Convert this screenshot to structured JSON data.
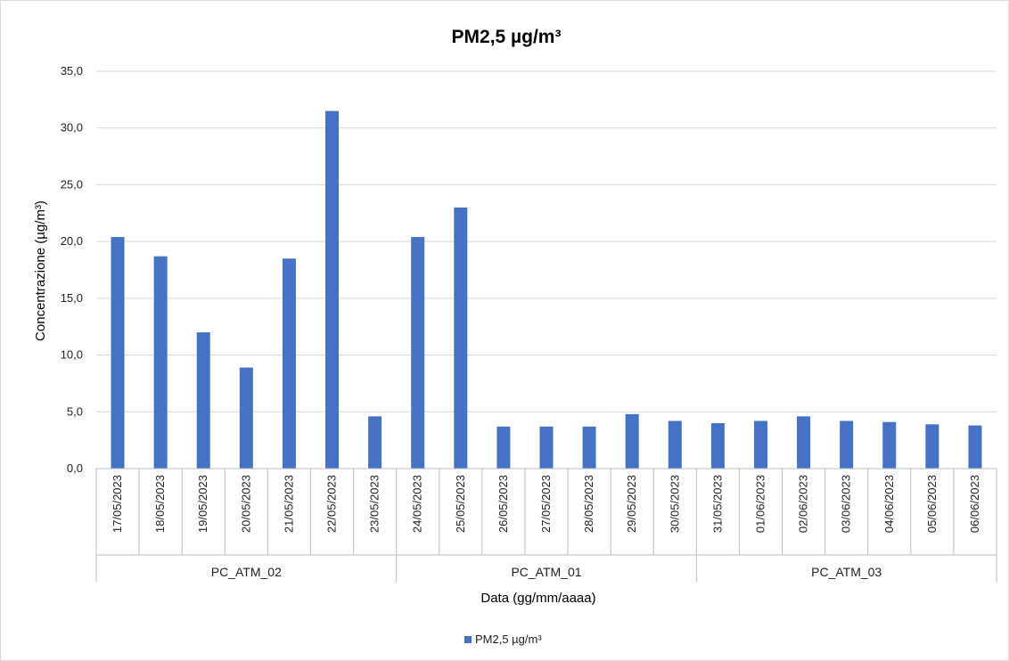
{
  "chart_data": {
    "type": "bar",
    "title": "PM2,5  µg/m³",
    "xlabel": "Data (gg/mm/aaaa)",
    "ylabel": "Concentrazione (µg/m³)",
    "ylim": [
      0,
      35
    ],
    "yticks": [
      "0,0",
      "5,0",
      "10,0",
      "15,0",
      "20,0",
      "25,0",
      "30,0",
      "35,0"
    ],
    "grid": true,
    "legend": "bottom",
    "color": "#4472c4",
    "categories": [
      "17/05/2023",
      "18/05/2023",
      "19/05/2023",
      "20/05/2023",
      "21/05/2023",
      "22/05/2023",
      "23/05/2023",
      "24/05/2023",
      "25/05/2023",
      "26/05/2023",
      "27/05/2023",
      "28/05/2023",
      "29/05/2023",
      "30/05/2023",
      "31/05/2023",
      "01/06/2023",
      "02/06/2023",
      "03/06/2023",
      "04/06/2023",
      "05/06/2023",
      "06/06/2023"
    ],
    "groups": [
      {
        "label": "PC_ATM_02",
        "count": 7
      },
      {
        "label": "PC_ATM_01",
        "count": 7
      },
      {
        "label": "PC_ATM_03",
        "count": 7
      }
    ],
    "series": [
      {
        "name": "PM2,5  µg/m³",
        "values": [
          20.4,
          18.7,
          12.0,
          8.9,
          18.5,
          31.5,
          4.6,
          20.4,
          23.0,
          3.7,
          3.7,
          3.7,
          4.8,
          4.2,
          4.0,
          4.2,
          4.6,
          4.2,
          4.1,
          3.9,
          3.8
        ]
      }
    ]
  }
}
